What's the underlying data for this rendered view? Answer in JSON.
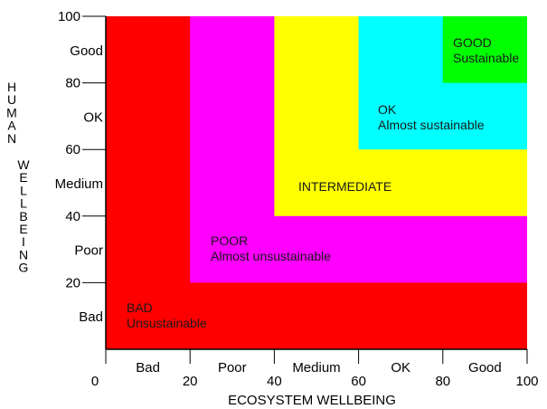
{
  "diagram": {
    "x_axis": {
      "title": "ECOSYSTEM WELLBEING",
      "range": [
        0,
        100
      ],
      "ticks": [
        0,
        20,
        40,
        60,
        80,
        100
      ],
      "band_labels": [
        "Bad",
        "Poor",
        "Medium",
        "OK",
        "Good"
      ]
    },
    "y_axis": {
      "title": "HUMAN WELLBEING",
      "range": [
        0,
        100
      ],
      "ticks": [
        20,
        40,
        60,
        80,
        100
      ],
      "band_labels": [
        "Bad",
        "Poor",
        "Medium",
        "OK",
        "Good"
      ]
    },
    "zones": [
      {
        "name": "bad",
        "lower": 0,
        "color": "#ff0000",
        "lines": [
          "BAD",
          "Unsustainable"
        ]
      },
      {
        "name": "poor",
        "lower": 20,
        "color": "#ff00ff",
        "lines": [
          "POOR",
          "Almost unsustainable"
        ]
      },
      {
        "name": "intermediate",
        "lower": 40,
        "color": "#ffff00",
        "lines": [
          "INTERMEDIATE"
        ]
      },
      {
        "name": "ok",
        "lower": 60,
        "color": "#00ffff",
        "lines": [
          "OK",
          "Almost sustainable"
        ]
      },
      {
        "name": "good",
        "lower": 80,
        "color": "#00ff00",
        "lines": [
          "GOOD",
          "Sustainable"
        ]
      }
    ]
  }
}
